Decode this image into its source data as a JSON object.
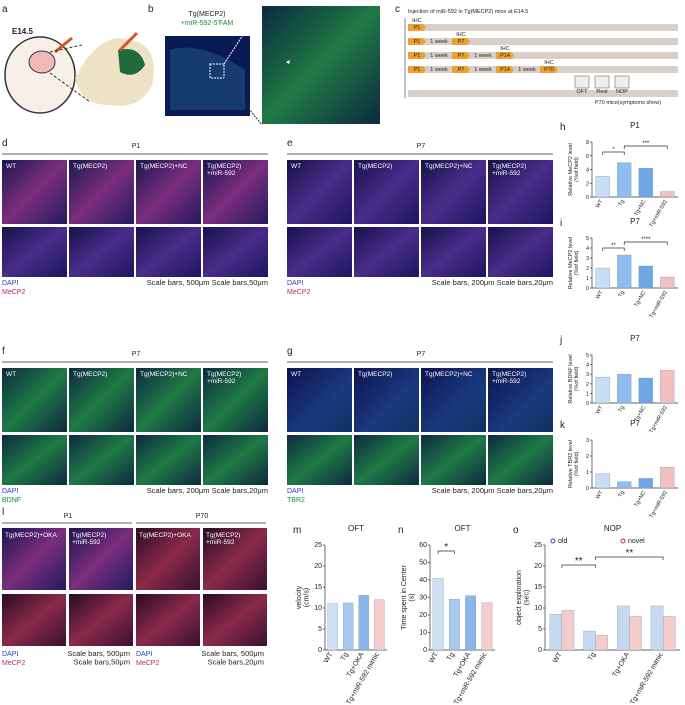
{
  "panels": {
    "a": {
      "letter": "a",
      "stage": "E14.5"
    },
    "b": {
      "letter": "b",
      "line1": "Tg(MECP2)",
      "line2": "+miR-592-5'FAM"
    },
    "c": {
      "letter": "c",
      "title": "Injection of miR-592 in Tg(MECP2) mice at E14.5",
      "assay": "IHC",
      "rows": [
        [
          "P1"
        ],
        [
          "P1",
          "1 week",
          "P7"
        ],
        [
          "P1",
          "1 week",
          "P7",
          "1 week",
          "P14"
        ],
        [
          "P1",
          "1 week",
          "P7",
          "1 week",
          "P14",
          "1 week",
          "P70"
        ]
      ],
      "tests": [
        "OFT",
        "Rest",
        "NOP"
      ],
      "footer": "P70 mice(symptoms show)"
    },
    "d": {
      "letter": "d",
      "stage": "P1",
      "groups": [
        "WT",
        "Tg(MECP2)",
        "Tg(MECP2)+NC",
        "Tg(MECP2)\n+miR-592"
      ],
      "stain1": "DAPI",
      "stain2": "MeCP2",
      "scale": "Scale bars, 500μm Scale bars,50μm"
    },
    "e": {
      "letter": "e",
      "stage": "P7",
      "groups": [
        "WT",
        "Tg(MECP2)",
        "Tg(MECP2)+NC",
        "Tg(MECP2)\n+miR-592"
      ],
      "stain1": "DAPI",
      "stain2": "MeCP2",
      "scale": "Scale bars, 200μm Scale bars,20μm"
    },
    "f": {
      "letter": "f",
      "stage": "P7",
      "groups": [
        "WT",
        "Tg(MECP2)",
        "Tg(MECP2)+NC",
        "Tg(MECP2)\n+miR-592"
      ],
      "stain1": "DAPI",
      "stain2": "BDNF",
      "scale": "Scale bars, 200μm Scale bars,20μm"
    },
    "g": {
      "letter": "g",
      "stage": "P7",
      "groups": [
        "WT",
        "Tg(MECP2)",
        "Tg(MECP2)+NC",
        "Tg(MECP2)\n+miR-592"
      ],
      "stain1": "DAPI",
      "stain2": "TBR2",
      "scale": "Scale bars, 200μm Scale bars,20μm"
    },
    "l": {
      "letter": "l",
      "stages": [
        "P1",
        "P70"
      ],
      "groups": [
        "Tg(MECP2)+OKA",
        "Tg(MECP2)\n+miR-592",
        "Tg(MECP2)+OKA",
        "Tg(MECP2)\n+miR-592"
      ],
      "stain1": "DAPI",
      "stain2": "MeCP2",
      "scales": [
        "Scale bars, 500μm\nScale bars,50μm",
        "Scale bars, 500μm\nScale bars,20μm"
      ]
    }
  },
  "chart_data": [
    {
      "type": "bar",
      "label": "h",
      "title": "P1",
      "ylabel": "Relative MeCP2 level\n(%of field)",
      "categories": [
        "WT",
        "Tg",
        "Tg+NC",
        "Tg+miR-592"
      ],
      "values": [
        3,
        5,
        4.2,
        0.8
      ],
      "colors": [
        "#c9ddf4",
        "#8fbdee",
        "#6fa6e6",
        "#f3c0c0"
      ],
      "ylim": [
        0,
        8
      ],
      "yticks": [
        0,
        2,
        4,
        6,
        8
      ],
      "annotations": [
        "*",
        "***"
      ]
    },
    {
      "type": "bar",
      "label": "i",
      "title": "P7",
      "ylabel": "Relative MeCP2 level\n(%of field)",
      "categories": [
        "WT",
        "Tg",
        "Tg+NC",
        "Tg+miR-592"
      ],
      "values": [
        2,
        3.3,
        2.2,
        1.1
      ],
      "colors": [
        "#c9ddf4",
        "#8fbdee",
        "#6fa6e6",
        "#f3c0c0"
      ],
      "ylim": [
        0,
        5
      ],
      "yticks": [
        0,
        1,
        2,
        3,
        4,
        5
      ],
      "annotations": [
        "**",
        "****"
      ]
    },
    {
      "type": "bar",
      "label": "j",
      "title": "P7",
      "ylabel": "Relative BDNF level\n(%of field)",
      "categories": [
        "WT",
        "Tg",
        "Tg+NC",
        "Tg+miR-592"
      ],
      "values": [
        2.7,
        3,
        2.6,
        3.4
      ],
      "colors": [
        "#c9ddf4",
        "#8fbdee",
        "#6fa6e6",
        "#f3c0c0"
      ],
      "ylim": [
        0,
        5
      ],
      "yticks": [
        0,
        1,
        2,
        3,
        4,
        5
      ],
      "annotations": []
    },
    {
      "type": "bar",
      "label": "k",
      "title": "P7",
      "ylabel": "Relative TBR2 level\n(%of field)",
      "categories": [
        "WT",
        "Tg",
        "Tg+NC",
        "Tg+miR-592"
      ],
      "values": [
        0.9,
        0.4,
        0.6,
        1.3
      ],
      "colors": [
        "#c9ddf4",
        "#8fbdee",
        "#6fa6e6",
        "#f3c0c0"
      ],
      "ylim": [
        0,
        3
      ],
      "yticks": [
        0,
        1,
        2,
        3
      ],
      "annotations": []
    },
    {
      "type": "bar",
      "label": "m",
      "title": "OFT",
      "ylabel": "velocity\n(cm/s)",
      "categories": [
        "WT",
        "Tg",
        "Tg+OKA",
        "Tg+miR-592 mimic"
      ],
      "values": [
        11,
        11.2,
        13,
        12
      ],
      "colors": [
        "#cfe0f5",
        "#a9c8ef",
        "#8bb5ea",
        "#f6cccc"
      ],
      "ylim": [
        0,
        25
      ],
      "yticks": [
        0,
        5,
        10,
        15,
        20,
        25
      ],
      "annotations": []
    },
    {
      "type": "bar",
      "label": "n",
      "title": "OFT",
      "ylabel": "Time spent in Center\n(s)",
      "categories": [
        "WT",
        "Tg",
        "Tg+OKA",
        "Tg+miR-592 mimic"
      ],
      "values": [
        41,
        29,
        31,
        27
      ],
      "colors": [
        "#cfe0f5",
        "#a9c8ef",
        "#8bb5ea",
        "#f6cccc"
      ],
      "ylim": [
        0,
        60
      ],
      "yticks": [
        0,
        10,
        20,
        30,
        40,
        50,
        60
      ],
      "annotations": [
        "*"
      ]
    },
    {
      "type": "grouped-bar",
      "label": "o",
      "title": "NOP",
      "ylabel": "object exploration\n(sec)",
      "categories": [
        "WT",
        "Tg",
        "Tg+OKA",
        "Tg+miR-592 mimic"
      ],
      "series": [
        {
          "name": "old",
          "color": "#c5d9f1",
          "values": [
            8.5,
            4.5,
            10.5,
            10.5
          ]
        },
        {
          "name": "novel",
          "color": "#f4cccc",
          "values": [
            9.5,
            3.5,
            8,
            8
          ]
        }
      ],
      "ylim": [
        0,
        25
      ],
      "yticks": [
        0,
        5,
        10,
        15,
        20,
        25
      ],
      "annotations": [
        "**",
        "**"
      ]
    }
  ]
}
